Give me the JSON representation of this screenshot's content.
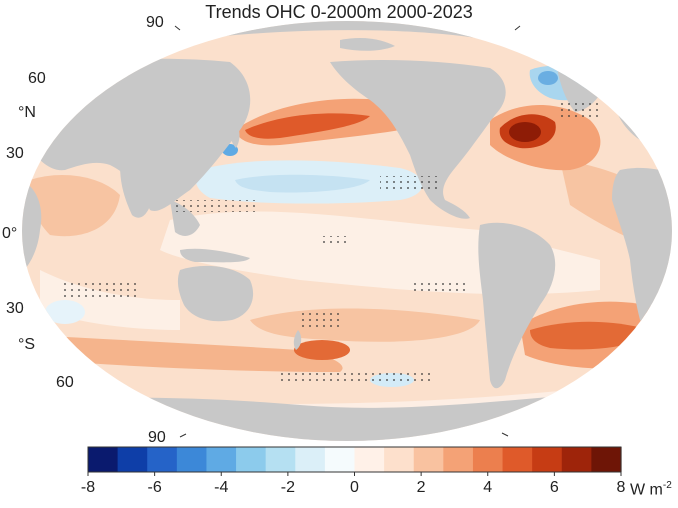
{
  "title": "Trends OHC 0-2000m 2000-2023",
  "latitude_labels": {
    "n90": "90",
    "n60": "60",
    "north_symbol": "°N",
    "n30": "30",
    "zero": "0°",
    "s30": "30",
    "south_symbol": "°S",
    "s60": "60",
    "s90": "90"
  },
  "colorbar": {
    "ticks": [
      "-8",
      "-6",
      "-4",
      "-2",
      "0",
      "2",
      "4",
      "6",
      "8"
    ],
    "unit": "W m",
    "unit_exponent": "-2",
    "colors": [
      "#0a1a6e",
      "#0e3ea8",
      "#2563c8",
      "#3c88d8",
      "#5faae4",
      "#8ccbec",
      "#b5e0f2",
      "#dbeff8",
      "#f5fbfd",
      "#fff1e8",
      "#fde0cc",
      "#f9c2a0",
      "#f4a276",
      "#ec7f4e",
      "#df5a2a",
      "#c63c14",
      "#9e240a",
      "#6e1506"
    ]
  },
  "legend_range": [
    -8,
    8
  ],
  "colors": {
    "land": "#c8c8c8",
    "ocean_base": "#fbe0cc",
    "hotspot": "#c2410c",
    "cool": "#c8e4f3"
  }
}
